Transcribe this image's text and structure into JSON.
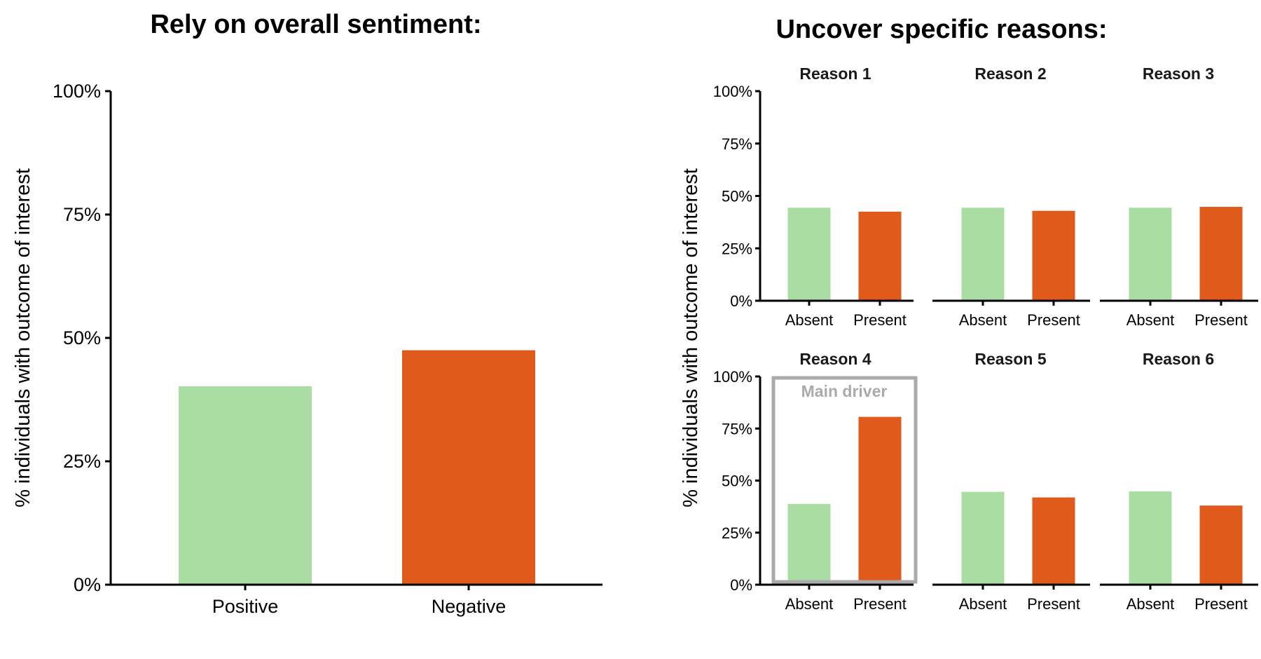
{
  "chart_data": [
    {
      "type": "bar",
      "title": "Rely on overall sentiment:",
      "ylabel": "% individuals with outcome of interest",
      "xlabel": "",
      "ylim": [
        0,
        100
      ],
      "yticks": [
        "0%",
        "25%",
        "50%",
        "75%",
        "100%"
      ],
      "categories": [
        "Positive",
        "Negative"
      ],
      "values": [
        40.2,
        47.5
      ],
      "colors": [
        "#a9dda4",
        "#df5a1b"
      ],
      "grid": false
    },
    {
      "type": "bar",
      "title": "Uncover specific reasons:",
      "ylabel": "% individuals with outcome of interest",
      "ylim": [
        0,
        100
      ],
      "yticks": [
        "0%",
        "25%",
        "50%",
        "75%",
        "100%"
      ],
      "categories": [
        "Absent",
        "Present"
      ],
      "colors": [
        "#a9dda4",
        "#df5a1b"
      ],
      "grid": false,
      "panels": [
        {
          "name": "Reason 1",
          "values": [
            44.4,
            42.5
          ]
        },
        {
          "name": "Reason 2",
          "values": [
            44.4,
            42.9
          ]
        },
        {
          "name": "Reason 3",
          "values": [
            44.4,
            44.8
          ]
        },
        {
          "name": "Reason 4",
          "values": [
            38.8,
            80.6
          ],
          "annotation": "Main driver"
        },
        {
          "name": "Reason 5",
          "values": [
            44.6,
            41.9
          ]
        },
        {
          "name": "Reason 6",
          "values": [
            44.8,
            38.0
          ]
        }
      ],
      "annotation_color": "#aaaaaa"
    }
  ]
}
